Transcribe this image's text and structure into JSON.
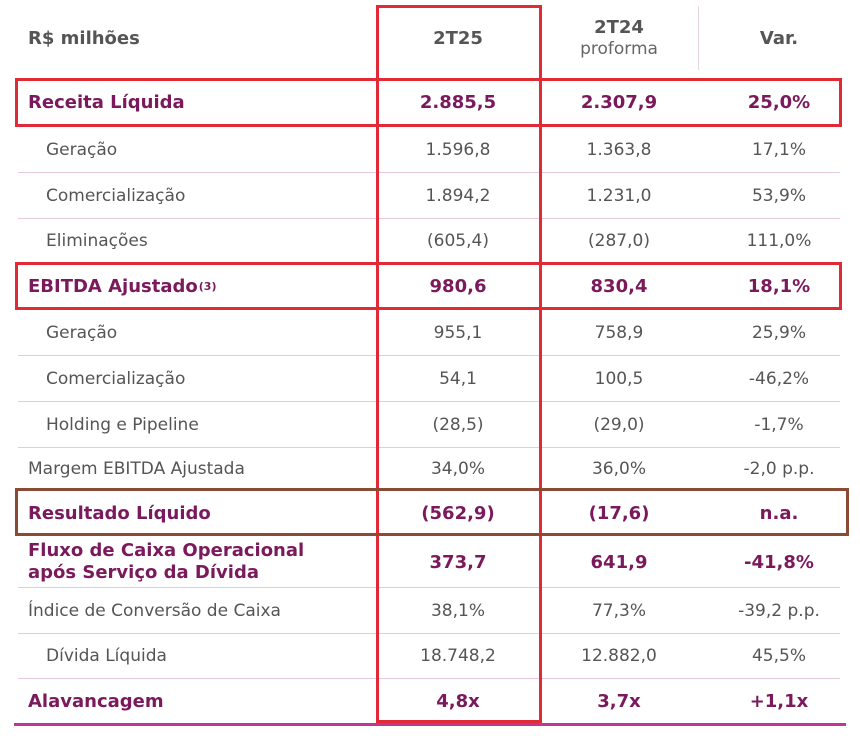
{
  "table": {
    "header": {
      "label": "R$ milhões",
      "col1": {
        "main": "2T25",
        "sub": ""
      },
      "col2": {
        "main": "2T24",
        "sub": "proforma"
      },
      "col3": {
        "main": "Var.",
        "sub": ""
      }
    },
    "rows": [
      {
        "label": "Receita Líquida",
        "v1": "2.885,5",
        "v2": "2.307,9",
        "v3": "25,0%"
      },
      {
        "label": "Geração",
        "v1": "1.596,8",
        "v2": "1.363,8",
        "v3": "17,1%"
      },
      {
        "label": "Comercialização",
        "v1": "1.894,2",
        "v2": "1.231,0",
        "v3": "53,9%"
      },
      {
        "label": "Eliminações",
        "v1": "(605,4)",
        "v2": "(287,0)",
        "v3": "111,0%"
      },
      {
        "label": "EBITDA Ajustado",
        "sup": "(3)",
        "v1": "980,6",
        "v2": "830,4",
        "v3": "18,1%"
      },
      {
        "label": "Geração",
        "v1": "955,1",
        "v2": "758,9",
        "v3": "25,9%"
      },
      {
        "label": "Comercialização",
        "v1": "54,1",
        "v2": "100,5",
        "v3": "-46,2%"
      },
      {
        "label": "Holding e Pipeline",
        "v1": "(28,5)",
        "v2": "(29,0)",
        "v3": "-1,7%"
      },
      {
        "label": "Margem EBITDA Ajustada",
        "v1": "34,0%",
        "v2": "36,0%",
        "v3": "-2,0 p.p."
      },
      {
        "label": "Resultado Líquido",
        "v1": "(562,9)",
        "v2": "(17,6)",
        "v3": "n.a."
      },
      {
        "label_line1": "Fluxo de Caixa Operacional",
        "label_line2": "após Serviço da Dívida",
        "v1": "373,7",
        "v2": "641,9",
        "v3": "-41,8%"
      },
      {
        "label": "Índice de Conversão de Caixa",
        "v1": "38,1%",
        "v2": "77,3%",
        "v3": "-39,2 p.p."
      },
      {
        "label": "Dívida Líquida",
        "v1": "18.748,2",
        "v2": "12.882,0",
        "v3": "45,5%"
      },
      {
        "label": "Alavancagem",
        "v1": "4,8x",
        "v2": "3,7x",
        "v3": "+1,1x"
      }
    ]
  },
  "colors": {
    "accent": "#7a1a5c",
    "highlight_red": "#e02a36",
    "highlight_brown": "#8b4a34",
    "bottom_bar": "#c4358f"
  }
}
